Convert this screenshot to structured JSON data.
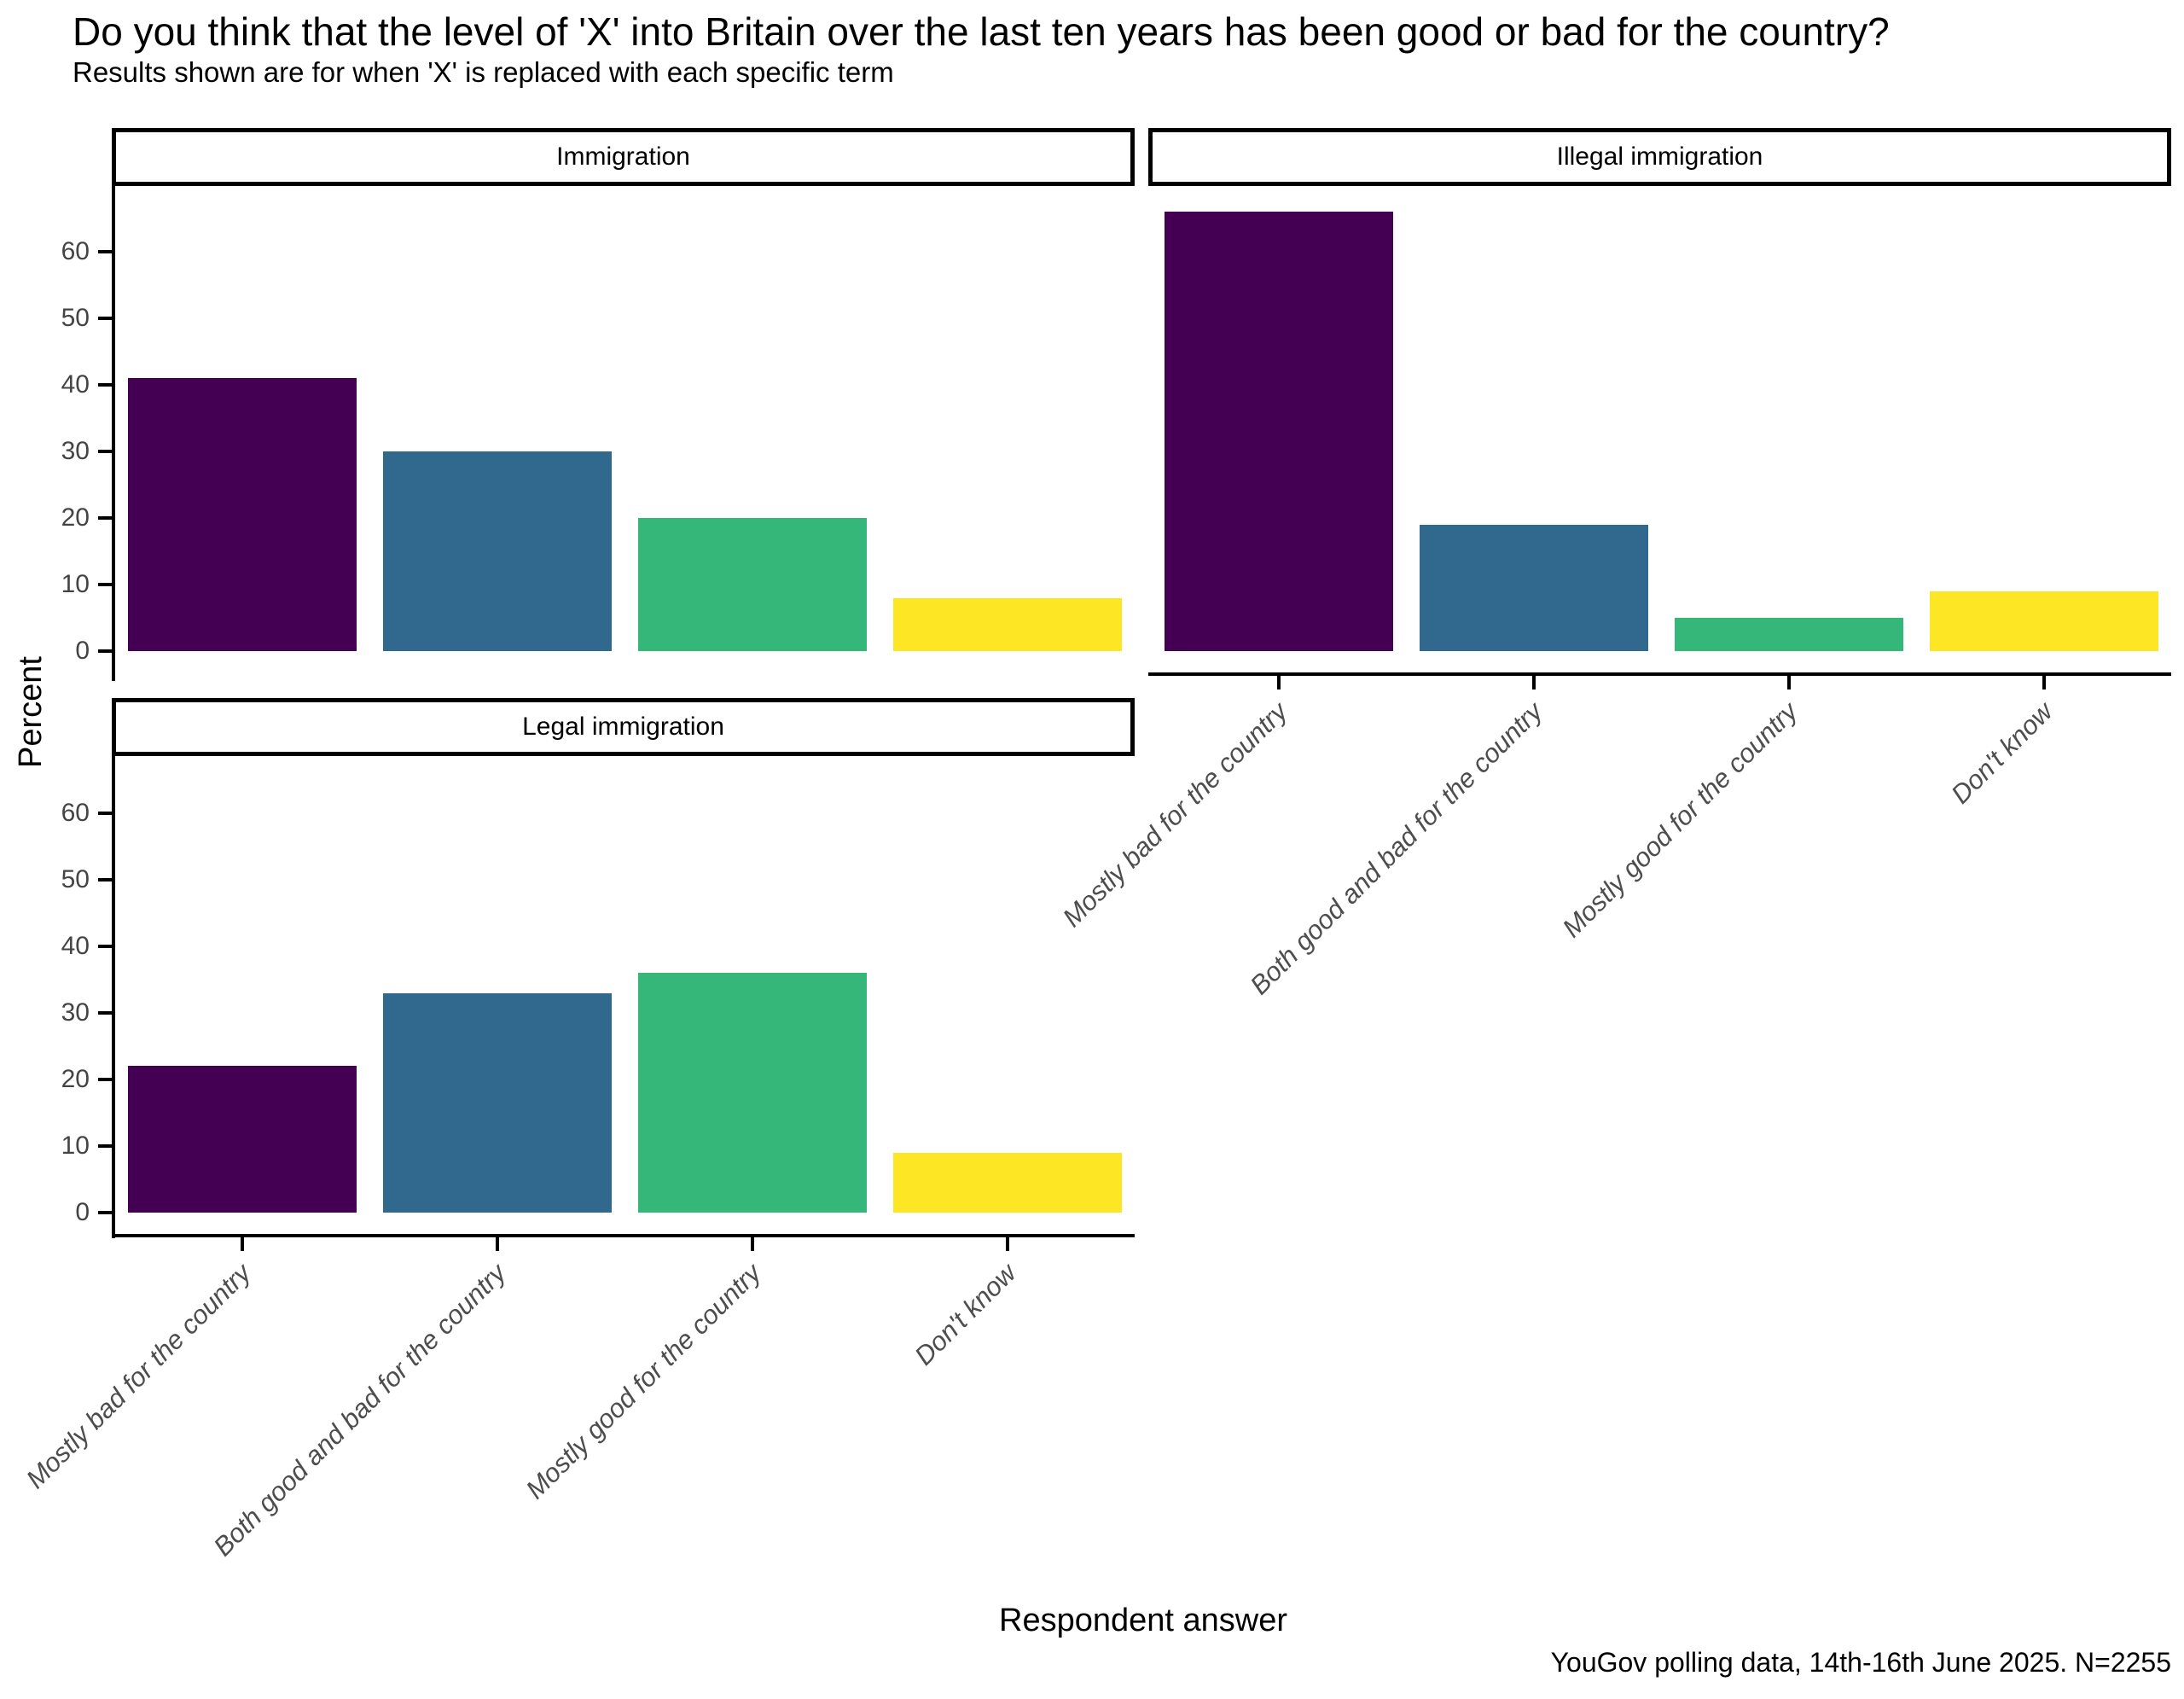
{
  "chart_data": {
    "type": "bar",
    "title": "Do you think that the level of 'X' into Britain over the last ten years has been good or bad for the country?",
    "subtitle": "Results shown are for when 'X' is replaced with each specific term",
    "xlabel": "Respondent answer",
    "ylabel": "Percent",
    "caption": "YouGov polling data, 14th-16th June 2025. N=2255",
    "categories": [
      "Mostly bad for the country",
      "Both good and bad for the country",
      "Mostly good for the country",
      "Don't know"
    ],
    "bar_colors": [
      "#440154",
      "#31688E",
      "#35B779",
      "#FDE725"
    ],
    "y_ticks": [
      0,
      10,
      20,
      30,
      40,
      50,
      60
    ],
    "ylim": [
      0,
      69
    ],
    "grid": false,
    "legend": "none",
    "facets": [
      {
        "label": "Immigration",
        "values": [
          41,
          30,
          20,
          8
        ]
      },
      {
        "label": "Illegal immigration",
        "values": [
          66,
          19,
          5,
          9
        ]
      },
      {
        "label": "Legal immigration",
        "values": [
          22,
          33,
          36,
          9
        ]
      }
    ]
  }
}
